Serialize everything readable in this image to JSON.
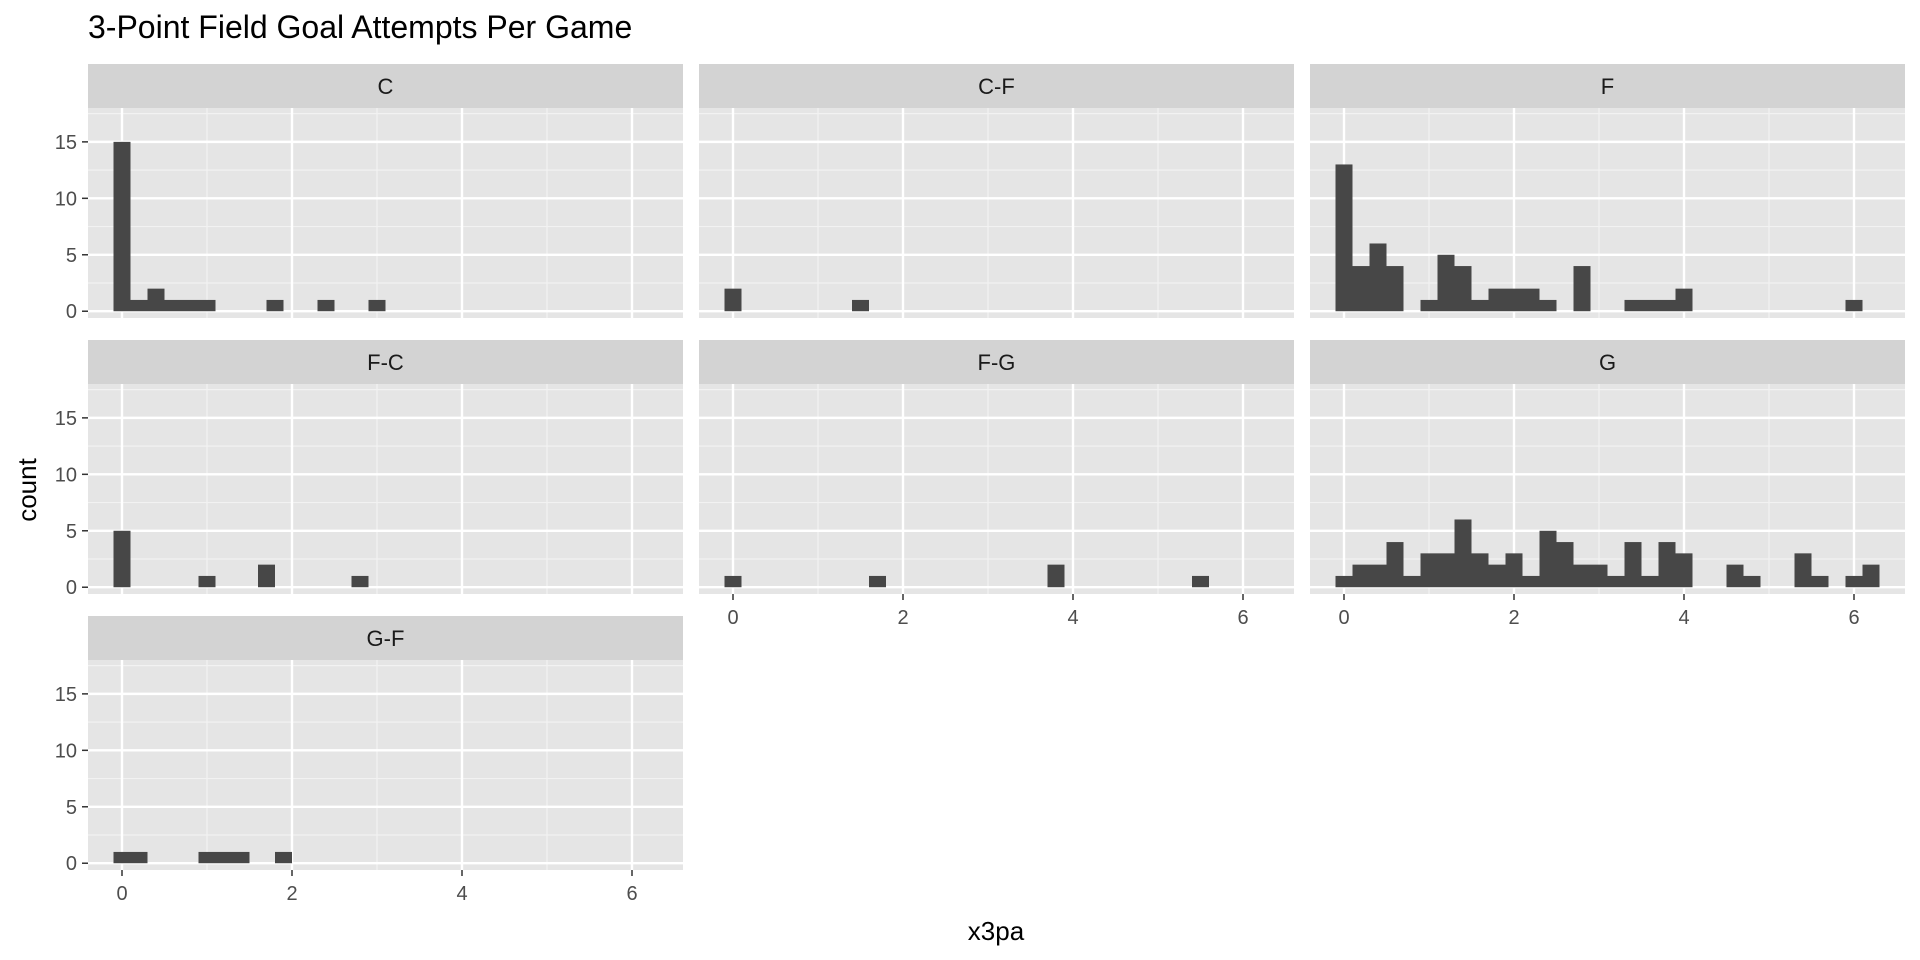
{
  "chart_data": {
    "type": "bar",
    "title": "3-Point Field Goal Attempts Per Game",
    "xlabel": "x3pa",
    "ylabel": "count",
    "xlim": [
      -0.4,
      6.6
    ],
    "ylim": [
      -0.6,
      18
    ],
    "x_ticks": [
      0,
      2,
      4,
      6
    ],
    "y_ticks": [
      0,
      5,
      10,
      15
    ],
    "bin_width": 0.2,
    "grid": true,
    "bar_color": "#474747",
    "panel_bg": "#e5e5e5",
    "strip_bg": "#d3d3d3",
    "facets": [
      {
        "label": "C",
        "bins": [
          [
            0,
            15
          ],
          [
            0.2,
            1
          ],
          [
            0.4,
            2
          ],
          [
            0.6,
            1
          ],
          [
            0.8,
            1
          ],
          [
            1.0,
            1
          ],
          [
            1.8,
            1
          ],
          [
            2.4,
            1
          ],
          [
            3.0,
            1
          ]
        ]
      },
      {
        "label": "C-F",
        "bins": [
          [
            0,
            2
          ],
          [
            1.5,
            1
          ]
        ]
      },
      {
        "label": "F",
        "bins": [
          [
            0,
            13
          ],
          [
            0.2,
            4
          ],
          [
            0.4,
            6
          ],
          [
            0.6,
            4
          ],
          [
            1.0,
            1
          ],
          [
            1.2,
            5
          ],
          [
            1.4,
            4
          ],
          [
            1.6,
            1
          ],
          [
            1.8,
            2
          ],
          [
            2.0,
            2
          ],
          [
            2.2,
            2
          ],
          [
            2.4,
            1
          ],
          [
            2.8,
            4
          ],
          [
            3.4,
            1
          ],
          [
            3.6,
            1
          ],
          [
            3.8,
            1
          ],
          [
            4.0,
            2
          ],
          [
            6.0,
            1
          ]
        ]
      },
      {
        "label": "F-C",
        "bins": [
          [
            0,
            5
          ],
          [
            1.0,
            1
          ],
          [
            1.7,
            2
          ],
          [
            2.8,
            1
          ]
        ]
      },
      {
        "label": "F-G",
        "bins": [
          [
            0,
            1
          ],
          [
            1.7,
            1
          ],
          [
            3.8,
            2
          ],
          [
            5.5,
            1
          ]
        ]
      },
      {
        "label": "G",
        "bins": [
          [
            0,
            1
          ],
          [
            0.2,
            2
          ],
          [
            0.4,
            2
          ],
          [
            0.6,
            4
          ],
          [
            0.8,
            1
          ],
          [
            1.0,
            3
          ],
          [
            1.2,
            3
          ],
          [
            1.4,
            6
          ],
          [
            1.6,
            3
          ],
          [
            1.8,
            2
          ],
          [
            2.0,
            3
          ],
          [
            2.2,
            1
          ],
          [
            2.4,
            5
          ],
          [
            2.6,
            4
          ],
          [
            2.8,
            2
          ],
          [
            3.0,
            2
          ],
          [
            3.2,
            1
          ],
          [
            3.4,
            4
          ],
          [
            3.6,
            1
          ],
          [
            3.8,
            4
          ],
          [
            4.0,
            3
          ],
          [
            4.2,
            0
          ],
          [
            4.6,
            2
          ],
          [
            4.8,
            1
          ],
          [
            5.4,
            3
          ],
          [
            5.6,
            1
          ],
          [
            5.8,
            0
          ],
          [
            6.0,
            1
          ],
          [
            6.2,
            2
          ]
        ]
      },
      {
        "label": "G-F",
        "bins": [
          [
            0,
            1
          ],
          [
            0.2,
            1
          ],
          [
            1.0,
            1
          ],
          [
            1.2,
            1
          ],
          [
            1.4,
            1
          ],
          [
            1.9,
            1
          ]
        ]
      }
    ]
  }
}
